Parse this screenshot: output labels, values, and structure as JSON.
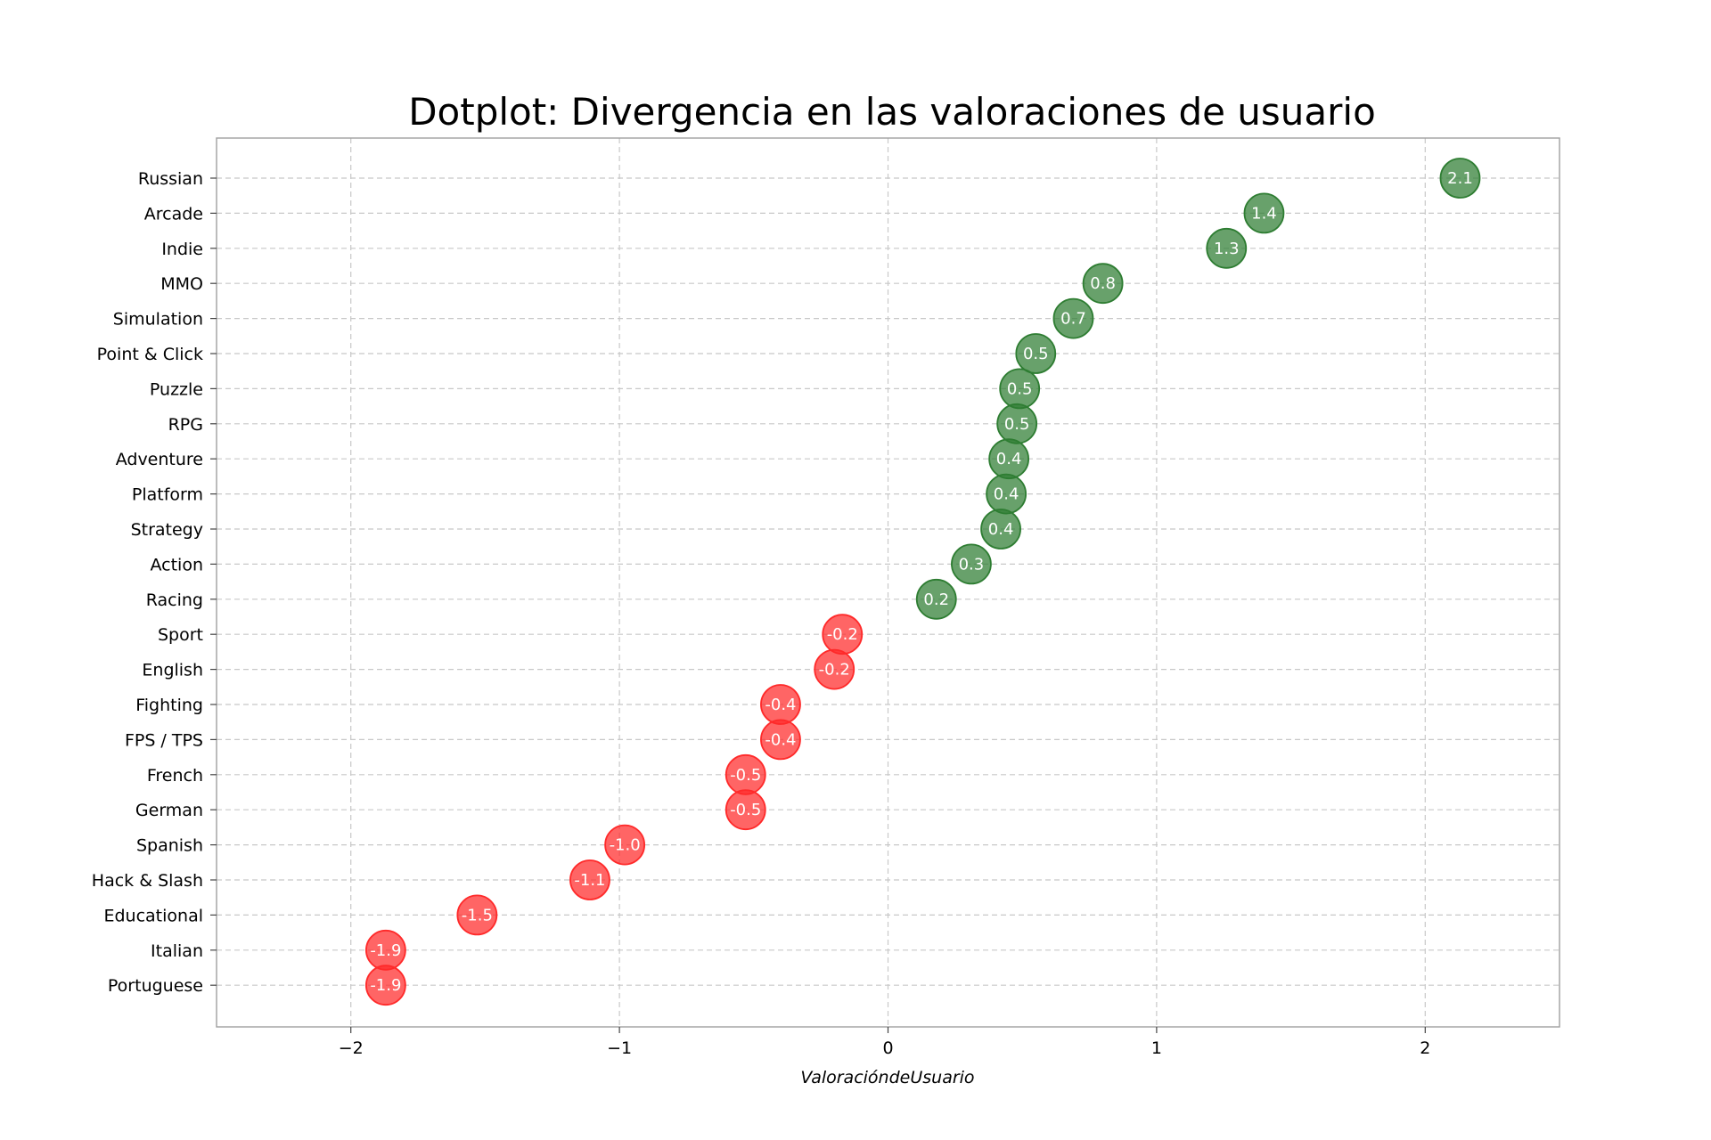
{
  "chart_data": {
    "type": "scatter",
    "title": "Dotplot: Divergencia en las valoraciones de usuario",
    "xlabel": "ValoracióndeUsuario",
    "ylabel": "",
    "xlim": [
      -2.5,
      2.5
    ],
    "xticks": [
      {
        "value": -2,
        "label": "−2"
      },
      {
        "value": -1,
        "label": "−1"
      },
      {
        "value": 0,
        "label": "0"
      },
      {
        "value": 1,
        "label": "1"
      },
      {
        "value": 2,
        "label": "2"
      }
    ],
    "grid": true,
    "positive_color": "#2e7d32",
    "negative_color": "#ff2a2a",
    "points": [
      {
        "category": "Russian",
        "value": 2.13,
        "label": "2.1"
      },
      {
        "category": "Arcade",
        "value": 1.4,
        "label": "1.4"
      },
      {
        "category": "Indie",
        "value": 1.26,
        "label": "1.3"
      },
      {
        "category": "MMO",
        "value": 0.8,
        "label": "0.8"
      },
      {
        "category": "Simulation",
        "value": 0.69,
        "label": "0.7"
      },
      {
        "category": "Point & Click",
        "value": 0.55,
        "label": "0.5"
      },
      {
        "category": "Puzzle",
        "value": 0.49,
        "label": "0.5"
      },
      {
        "category": "RPG",
        "value": 0.48,
        "label": "0.5"
      },
      {
        "category": "Adventure",
        "value": 0.45,
        "label": "0.4"
      },
      {
        "category": "Platform",
        "value": 0.44,
        "label": "0.4"
      },
      {
        "category": "Strategy",
        "value": 0.42,
        "label": "0.4"
      },
      {
        "category": "Action",
        "value": 0.31,
        "label": "0.3"
      },
      {
        "category": "Racing",
        "value": 0.18,
        "label": "0.2"
      },
      {
        "category": "Sport",
        "value": -0.17,
        "label": "-0.2"
      },
      {
        "category": "English",
        "value": -0.2,
        "label": "-0.2"
      },
      {
        "category": "Fighting",
        "value": -0.4,
        "label": "-0.4"
      },
      {
        "category": "FPS / TPS",
        "value": -0.4,
        "label": "-0.4"
      },
      {
        "category": "French",
        "value": -0.53,
        "label": "-0.5"
      },
      {
        "category": "German",
        "value": -0.53,
        "label": "-0.5"
      },
      {
        "category": "Spanish",
        "value": -0.98,
        "label": "-1.0"
      },
      {
        "category": "Hack & Slash",
        "value": -1.11,
        "label": "-1.1"
      },
      {
        "category": "Educational",
        "value": -1.53,
        "label": "-1.5"
      },
      {
        "category": "Italian",
        "value": -1.87,
        "label": "-1.9"
      },
      {
        "category": "Portuguese",
        "value": -1.87,
        "label": "-1.9"
      }
    ]
  }
}
